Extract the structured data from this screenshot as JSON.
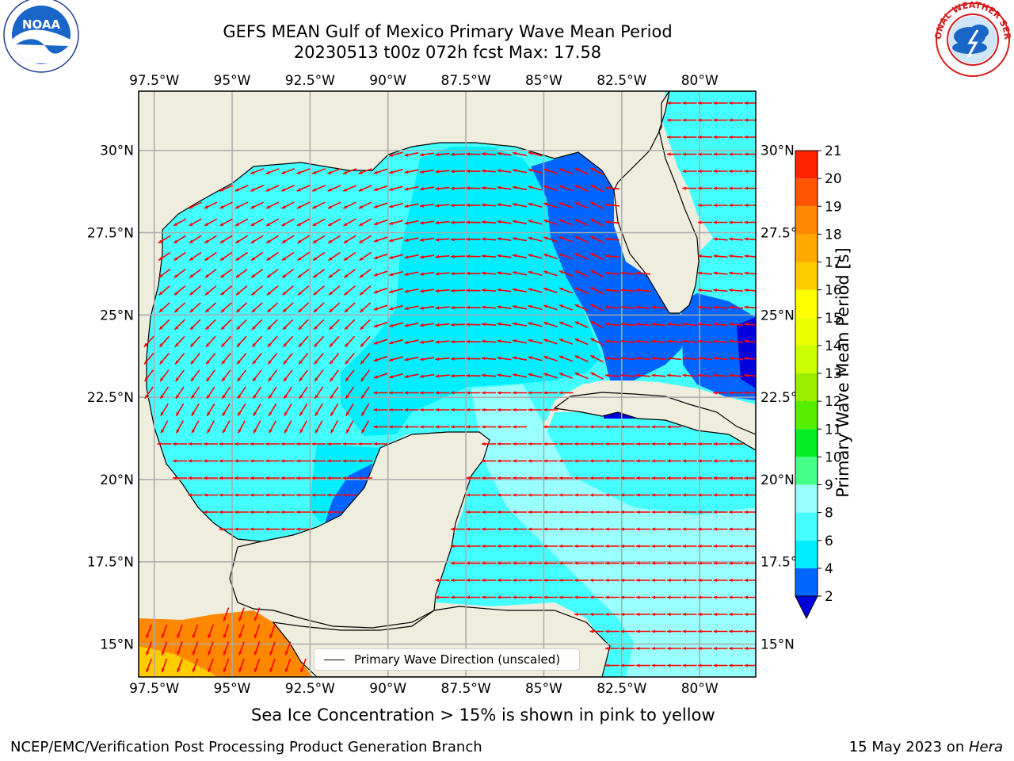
{
  "header": {
    "title_line1": "GEFS MEAN Gulf of Mexico Primary Wave Mean Period",
    "title_line2": "20230513 t00z 072h fcst   Max: 17.58"
  },
  "logos": {
    "left": "noaa-logo",
    "right": "nws-logo",
    "left_text": "NOAA",
    "right_text": "NATIONAL WEATHER SERVICE"
  },
  "map": {
    "region": "Gulf of Mexico",
    "lon_ticks": [
      "97.5°W",
      "95°W",
      "92.5°W",
      "90°W",
      "87.5°W",
      "85°W",
      "82.5°W",
      "80°W"
    ],
    "lon_values": [
      -97.5,
      -95,
      -92.5,
      -90,
      -87.5,
      -85,
      -82.5,
      -80
    ],
    "lat_ticks": [
      "30°N",
      "27.5°N",
      "25°N",
      "22.5°N",
      "20°N",
      "17.5°N",
      "15°N"
    ],
    "lat_values": [
      30,
      27.5,
      25,
      22.5,
      20,
      17.5,
      15
    ],
    "lon_range": [
      -98,
      -78.2
    ],
    "lat_range": [
      14,
      31.8
    ],
    "land_color": "#efedde",
    "arrow_color": "#ff0000"
  },
  "colorbar": {
    "label": "Primary Wave Mean Period [s]",
    "ticks": [
      "2",
      "4",
      "6",
      "8",
      "9",
      "10",
      "11",
      "12",
      "13",
      "14",
      "15",
      "16",
      "17",
      "18",
      "19",
      "20",
      "21"
    ],
    "levels": [
      2,
      4,
      6,
      8,
      9,
      10,
      11,
      12,
      13,
      14,
      15,
      16,
      17,
      18,
      19,
      20,
      21
    ],
    "colors": [
      "#0064ff",
      "#00eeff",
      "#44ffff",
      "#99ffff",
      "#44ff88",
      "#00ee22",
      "#55ee00",
      "#99ee00",
      "#ccff00",
      "#eeff00",
      "#ffff00",
      "#ffcc00",
      "#ffaa00",
      "#ff8800",
      "#ff5500",
      "#ff2200"
    ],
    "under_color": "#0000dd"
  },
  "legend": {
    "label": "Primary Wave Direction (unscaled)"
  },
  "footer": {
    "note": "Sea Ice Concentration > 15% is shown in pink to yellow",
    "credit": "NCEP/EMC/Verification Post Processing Product Generation Branch",
    "date_text": "15 May 2023 on ",
    "machine": "Hera"
  }
}
